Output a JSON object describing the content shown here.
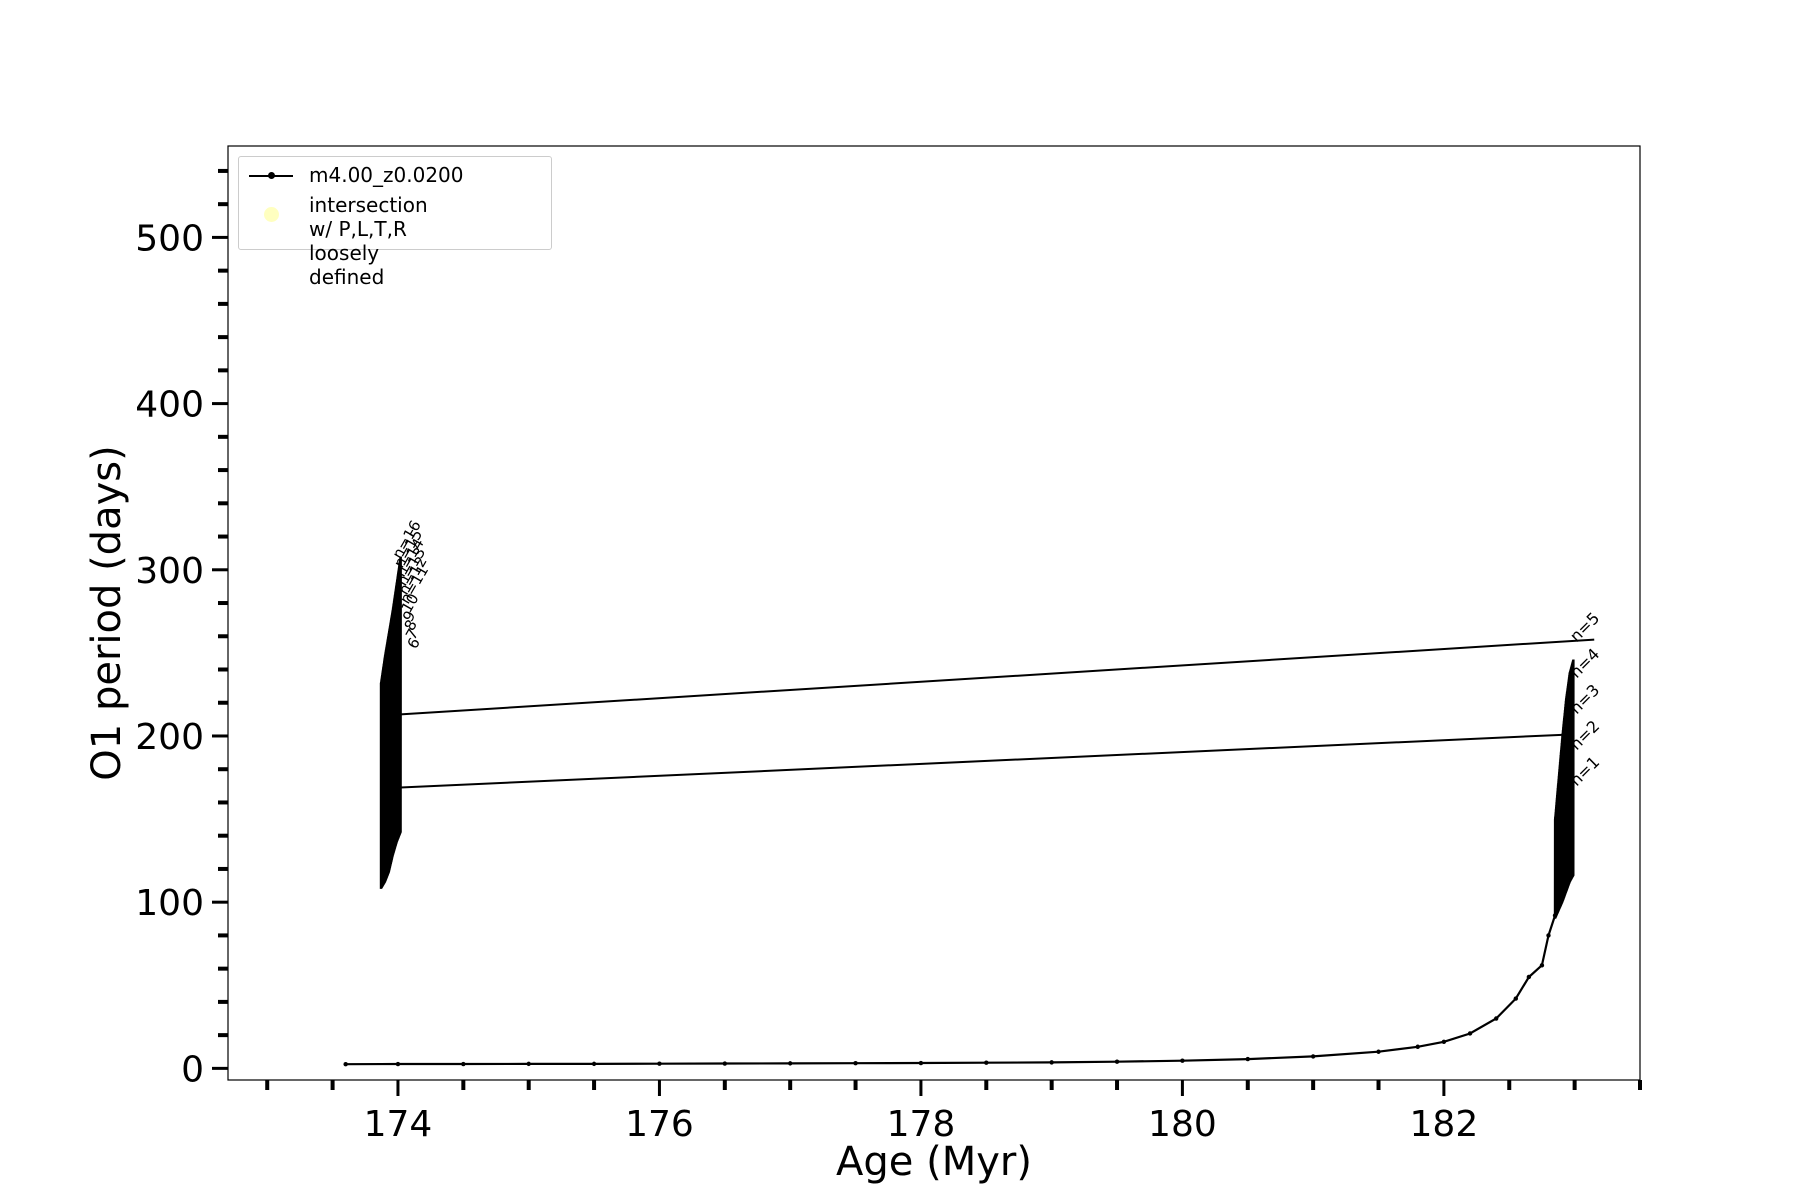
{
  "chart_data": {
    "type": "line",
    "title": "",
    "xlabel": "Age (Myr)",
    "ylabel": "O1 period (days)",
    "xlim": [
      172.7,
      183.5
    ],
    "ylim": [
      -7,
      555
    ],
    "xticks": [
      174,
      176,
      178,
      180,
      182
    ],
    "yticks": [
      0,
      100,
      200,
      300,
      400,
      500
    ],
    "x_minor_step": 0.5,
    "y_minor_step": 20,
    "grid": false,
    "legend_placement": "top-left",
    "legend": [
      {
        "label": "m4.00_z0.0200",
        "marker": "line-dot",
        "color": "#000000"
      },
      {
        "label": "intersection w/ P,L,T,R\nloosely defined",
        "marker": "circle",
        "color": "#ffffb5"
      }
    ],
    "series": [
      {
        "name": "m4.00_z0.0200",
        "color": "#000000",
        "x": [
          173.6,
          174.0,
          174.5,
          175.0,
          175.5,
          176.0,
          176.5,
          177.0,
          177.5,
          178.0,
          178.5,
          179.0,
          179.5,
          180.0,
          180.5,
          181.0,
          181.5,
          181.8,
          182.0,
          182.2,
          182.4,
          182.55,
          182.65,
          182.75,
          182.8,
          182.85
        ],
        "y": [
          2.5,
          2.6,
          2.6,
          2.7,
          2.7,
          2.8,
          2.9,
          3.0,
          3.1,
          3.2,
          3.4,
          3.6,
          4.0,
          4.6,
          5.6,
          7.2,
          10.0,
          13.0,
          16.0,
          21.0,
          30.0,
          42.0,
          55.0,
          62.0,
          80.0,
          92.0
        ]
      }
    ],
    "loops": [
      {
        "x_from": 173.87,
        "x_to": 174.02,
        "y_min": [
          108,
          112,
          118,
          128,
          136,
          142
        ],
        "y_max": [
          232,
          248,
          262,
          276,
          292,
          308
        ]
      },
      {
        "x_from": 182.85,
        "x_to": 182.99,
        "y_min": [
          90,
          95,
          100,
          106,
          112,
          116
        ],
        "y_max": [
          150,
          175,
          200,
          222,
          238,
          246
        ]
      }
    ],
    "connectors": [
      {
        "x": [
          174.02,
          182.99
        ],
        "y": [
          169,
          201
        ]
      },
      {
        "x": [
          174.02,
          183.15
        ],
        "y": [
          213,
          258
        ]
      }
    ],
    "annotations_left": [
      "n=16",
      "n=15",
      "n=14",
      "n=13",
      "n=12",
      "n=11",
      "10",
      "9",
      "8",
      "7",
      "6"
    ],
    "annotations_right": [
      "n=5",
      "n=4",
      "n=3",
      "n=2",
      "n=1"
    ]
  }
}
